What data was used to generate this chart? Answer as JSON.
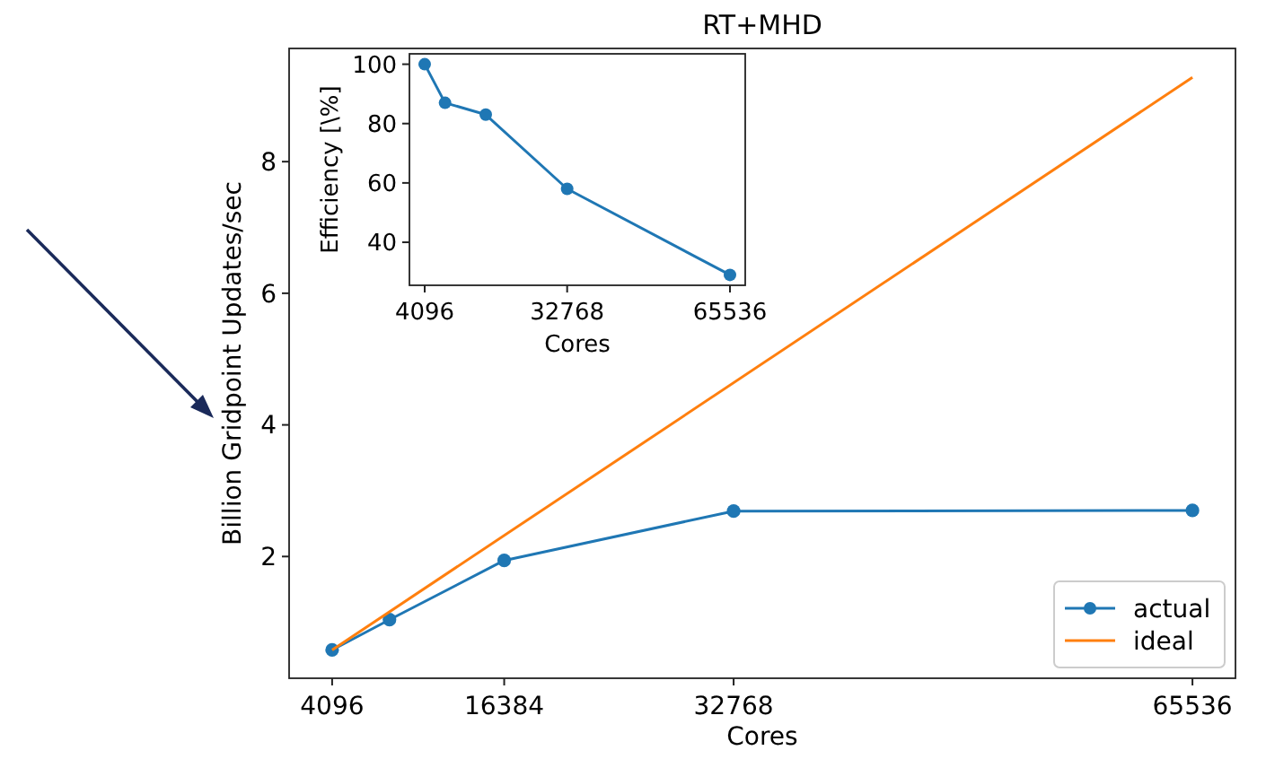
{
  "chart_data": [
    {
      "type": "line",
      "title": "RT+MHD",
      "xlabel": "Cores",
      "ylabel": "Billion Gridpoint Updates/sec",
      "xlim": [
        1024,
        68608
      ],
      "xticks": [
        4096,
        16384,
        32768,
        65536
      ],
      "ylim": [
        0.15,
        9.72
      ],
      "yticks": [
        2,
        4,
        6,
        8
      ],
      "legend": "bottom right",
      "series": [
        {
          "name": "actual",
          "color": "#1f77b4",
          "marker": "circle",
          "x": [
            4096,
            8192,
            16384,
            32768,
            65536
          ],
          "values": [
            0.58,
            1.04,
            1.94,
            2.69,
            2.7
          ]
        },
        {
          "name": "ideal",
          "color": "#ff7f0e",
          "marker": "none",
          "x": [
            4096,
            65536
          ],
          "values": [
            0.58,
            9.28
          ]
        }
      ]
    },
    {
      "type": "line",
      "xlabel": "Cores",
      "ylabel": "Efficiency [\\%]",
      "xlim": [
        1024,
        68608
      ],
      "xticks": [
        4096,
        32768,
        65536
      ],
      "ylim": [
        25.5,
        103.5
      ],
      "yticks": [
        40,
        60,
        80,
        100
      ],
      "series": [
        {
          "color": "#1f77b4",
          "marker": "circle",
          "x": [
            4096,
            8192,
            16384,
            32768,
            65536
          ],
          "values": [
            100,
            87,
            83,
            58,
            29
          ]
        }
      ]
    }
  ]
}
